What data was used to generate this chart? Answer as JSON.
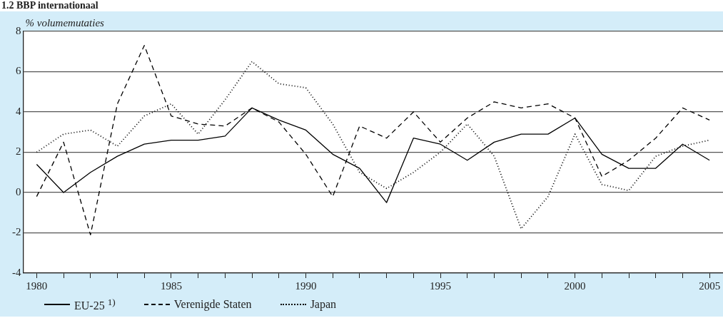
{
  "chart_data": {
    "type": "line",
    "title": "1.2 BBP internationaal",
    "ylabel": "% volumemutaties",
    "x": [
      1980,
      1981,
      1982,
      1983,
      1984,
      1985,
      1986,
      1987,
      1988,
      1989,
      1990,
      1991,
      1992,
      1993,
      1994,
      1995,
      1996,
      1997,
      1998,
      1999,
      2000,
      2001,
      2002,
      2003,
      2004,
      2005
    ],
    "series": [
      {
        "name": "EU-25 $^{1)}$",
        "color": "#000000",
        "line_style": "solid",
        "values": [
          1.4,
          0.0,
          1.0,
          1.8,
          2.4,
          2.6,
          2.6,
          2.8,
          4.2,
          3.6,
          3.1,
          1.9,
          1.2,
          -0.5,
          2.7,
          2.4,
          1.6,
          2.5,
          2.9,
          2.9,
          3.7,
          1.9,
          1.2,
          1.2,
          2.4,
          1.6
        ]
      },
      {
        "name": "Verenigde Staten",
        "color": "#000000",
        "line_style": "dashed",
        "values": [
          -0.2,
          2.5,
          -2.1,
          4.4,
          7.3,
          3.8,
          3.4,
          3.3,
          4.2,
          3.5,
          1.9,
          -0.2,
          3.3,
          2.7,
          4.0,
          2.5,
          3.7,
          4.5,
          4.2,
          4.4,
          3.7,
          0.8,
          1.6,
          2.7,
          4.2,
          3.6
        ]
      },
      {
        "name": "Japan",
        "color": "#000000",
        "line_style": "dotted",
        "values": [
          2.0,
          2.9,
          3.1,
          2.3,
          3.8,
          4.4,
          2.9,
          4.6,
          6.5,
          5.4,
          5.2,
          3.4,
          1.0,
          0.2,
          1.0,
          2.0,
          3.4,
          1.8,
          -1.8,
          -0.2,
          2.9,
          0.4,
          0.1,
          1.8,
          2.3,
          2.6
        ]
      }
    ],
    "xlim": [
      1979.5,
      2005.5
    ],
    "xticks": [
      1980,
      {
        "value": 1981,
        "label": null
      },
      {
        "value": 1982,
        "label": null
      },
      {
        "value": 1983,
        "label": null
      },
      {
        "value": 1984,
        "label": null
      },
      1985,
      {
        "value": 1986,
        "label": null
      },
      {
        "value": 1987,
        "label": null
      },
      {
        "value": 1988,
        "label": null
      },
      {
        "value": 1989,
        "label": null
      },
      1990,
      {
        "value": 1991,
        "label": null
      },
      {
        "value": 1992,
        "label": null
      },
      {
        "value": 1993,
        "label": null
      },
      {
        "value": 1994,
        "label": null
      },
      1995,
      {
        "value": 1996,
        "label": null
      },
      {
        "value": 1997,
        "label": null
      },
      {
        "value": 1998,
        "label": null
      },
      {
        "value": 1999,
        "label": null
      },
      2000,
      {
        "value": 2001,
        "label": null
      },
      {
        "value": 2002,
        "label": null
      },
      {
        "value": 2003,
        "label": null
      },
      {
        "value": 2004,
        "label": null
      },
      2005
    ],
    "ylim": [
      -4,
      8
    ],
    "yticks": [
      -4,
      -2,
      0,
      2,
      4,
      6,
      8
    ],
    "grid": "y",
    "legend": "bottom",
    "marker": "none"
  }
}
